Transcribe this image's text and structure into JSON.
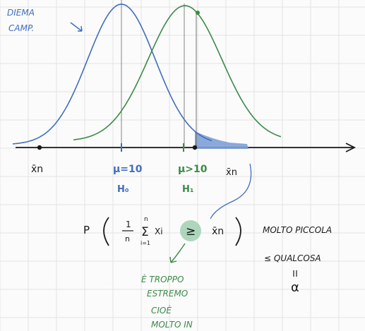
{
  "colors": {
    "ink": "#1a1a1a",
    "blue": "#3f6fbf",
    "green": "#3b8a48",
    "shade": "#7d9fd6",
    "grid": "#e3e3e3",
    "paper": "#fbfbfb"
  },
  "labels": {
    "dist_title_1": "DIEMA",
    "dist_title_2": "CAMP.",
    "xbar_left": "x̄n",
    "mu0": "μ=10",
    "h0": "H₀",
    "mu1": "μ>10",
    "h1": "H₁",
    "xbar_right": "x̄n"
  },
  "formula": {
    "p": "P",
    "frac_num": "1",
    "frac_den": "n",
    "sum_top": "n",
    "sum_sym": "Σ",
    "sum_bottom": "i=1",
    "xi": "Xi",
    "geq": "≥",
    "xbar": "x̄n"
  },
  "notes": {
    "right_1": "MOLTO PICCOLA",
    "right_2": "≤ QUALCOSA",
    "alpha": "α",
    "green_1": "È TROPPO",
    "green_2": "ESTREMO",
    "green_3": "CIOÈ",
    "green_4": "MOLTO IN"
  }
}
